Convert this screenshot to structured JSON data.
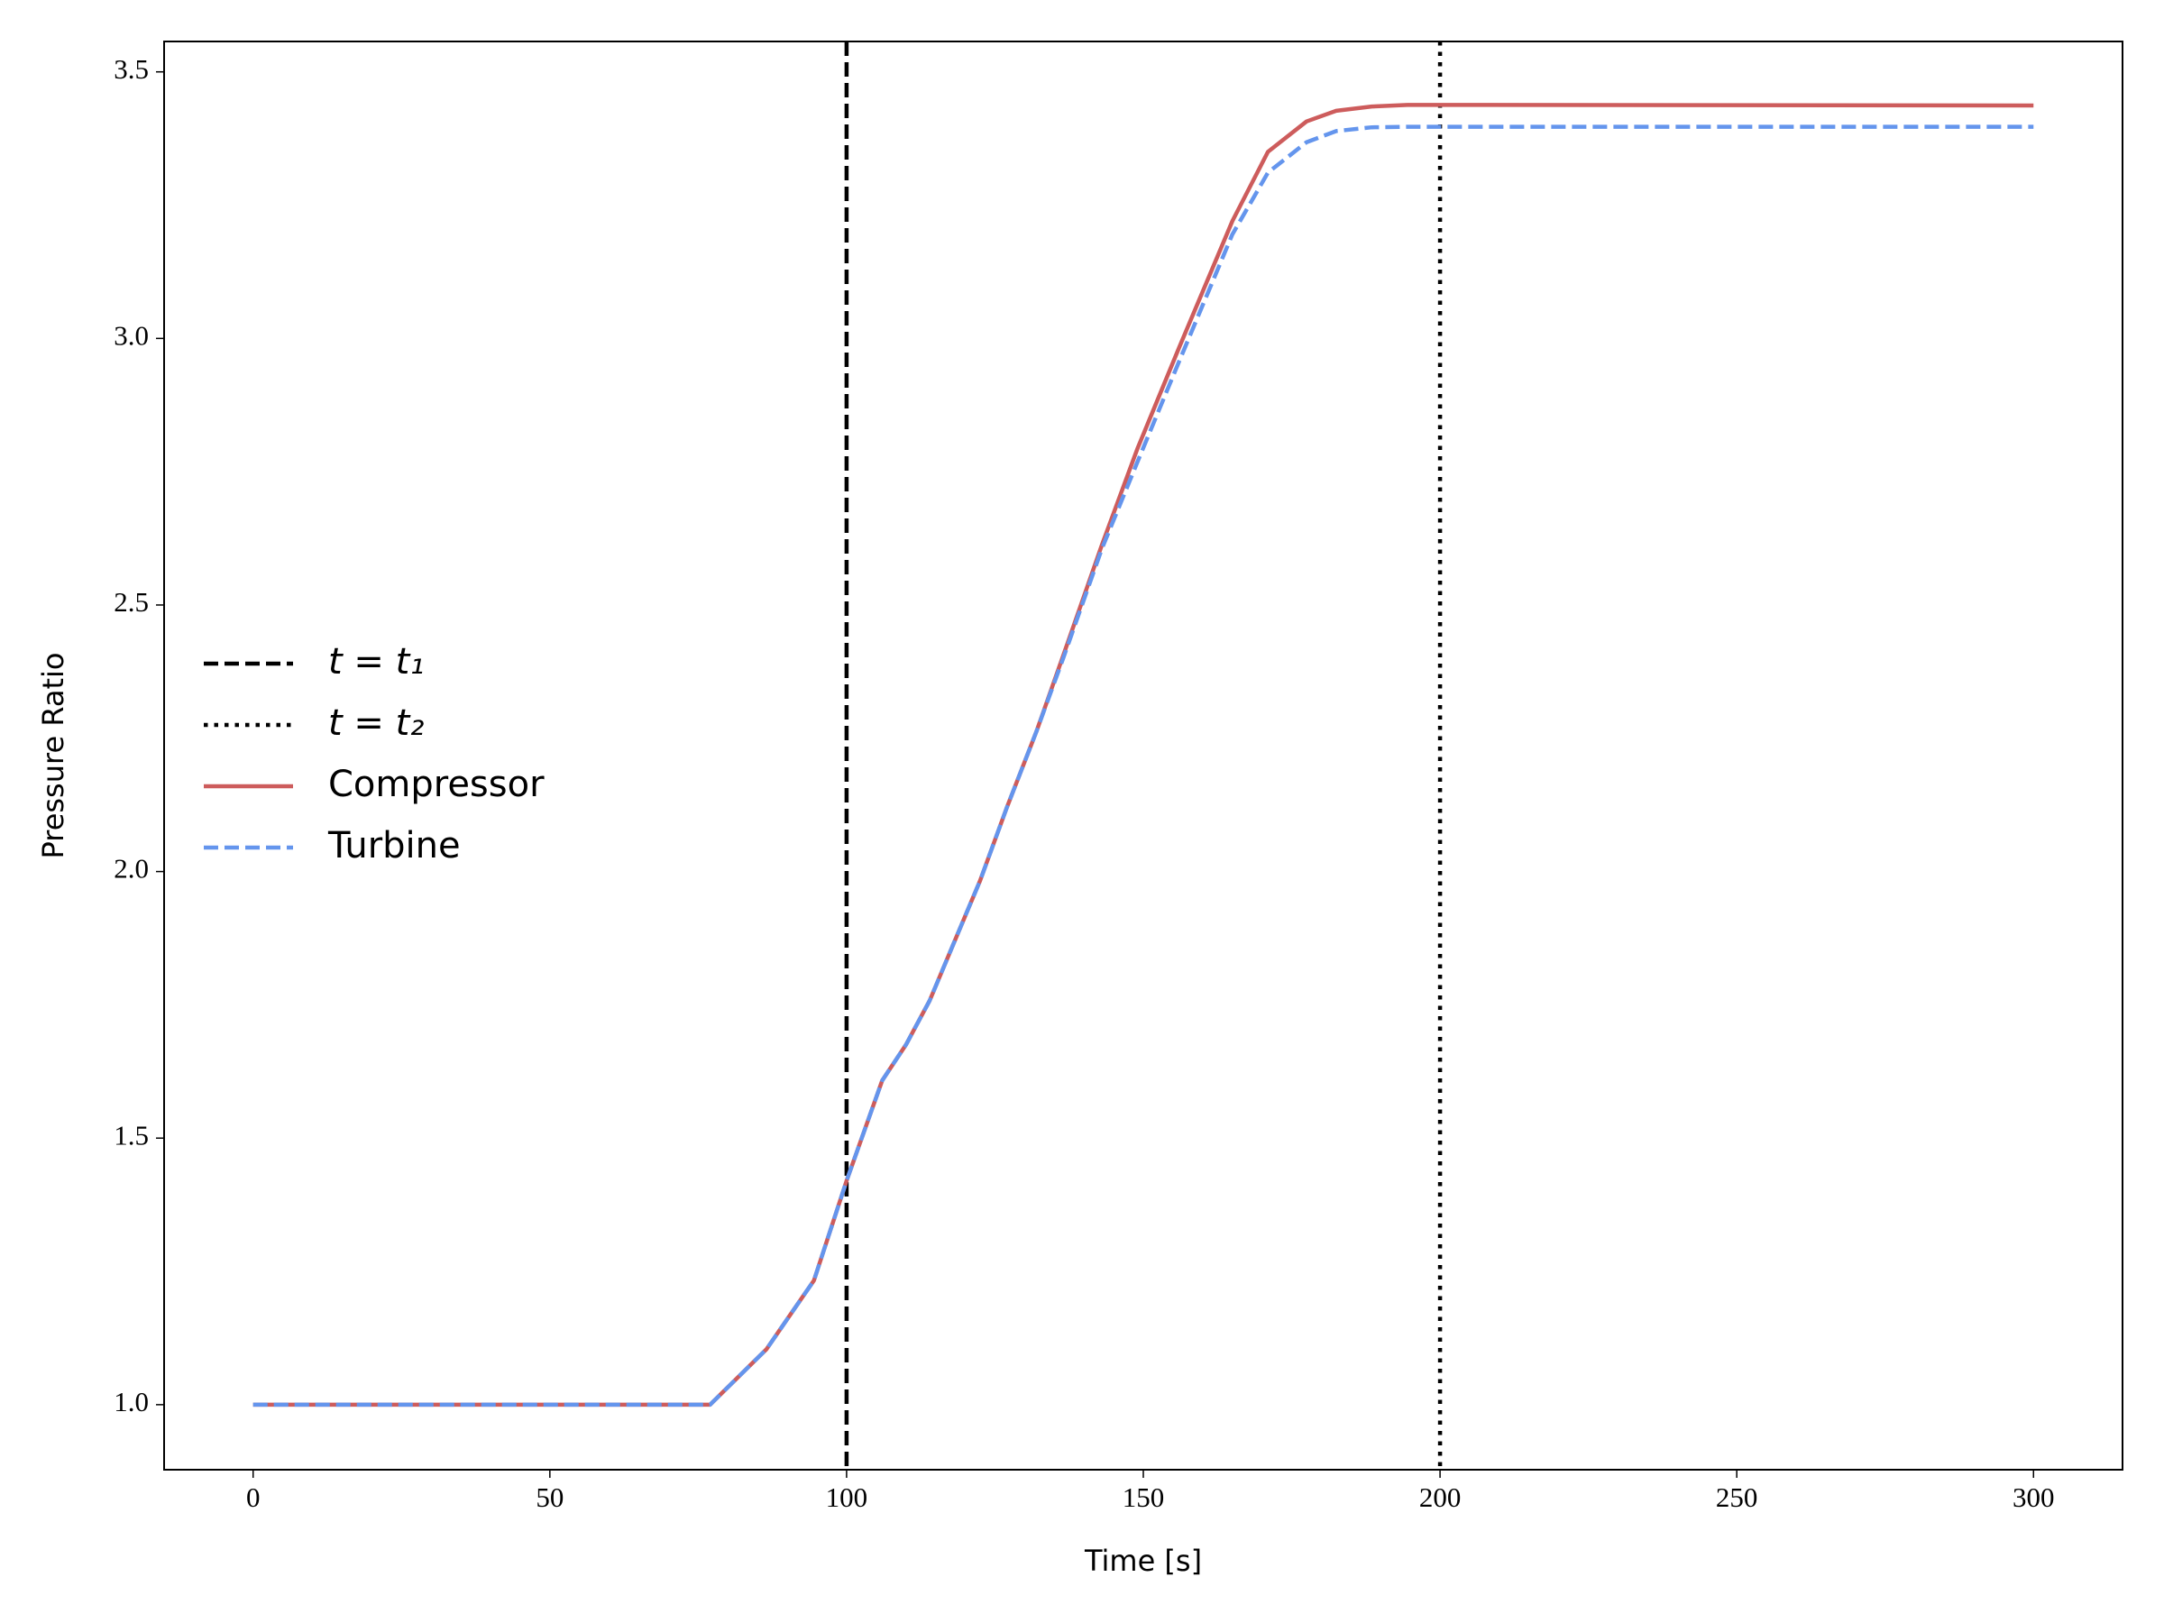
{
  "chart_data": {
    "type": "line",
    "xlabel": "Time [s]",
    "ylabel": "Pressure Ratio",
    "x": [
      0,
      77,
      86.5,
      94.5,
      100,
      106,
      110,
      114,
      118,
      122.5,
      127,
      132,
      136.5,
      143,
      149,
      156,
      165,
      171,
      177.5,
      182.5,
      188.5,
      194.5,
      200,
      300
    ],
    "series": [
      {
        "name": "Compressor",
        "color": "#cd5c5c",
        "style": "solid",
        "values": [
          1,
          1,
          1.104,
          1.233,
          1.42,
          1.608,
          1.675,
          1.758,
          1.864,
          1.983,
          2.12,
          2.263,
          2.405,
          2.612,
          2.793,
          2.982,
          3.22,
          3.35,
          3.407,
          3.427,
          3.435,
          3.438,
          3.438,
          3.437
        ]
      },
      {
        "name": "Turbine",
        "color": "#6495ed",
        "style": "dashed",
        "values": [
          1,
          1,
          1.104,
          1.233,
          1.42,
          1.608,
          1.675,
          1.758,
          1.864,
          1.983,
          2.12,
          2.263,
          2.4,
          2.605,
          2.768,
          2.956,
          3.195,
          3.311,
          3.368,
          3.389,
          3.396,
          3.397,
          3.397,
          3.397
        ]
      }
    ],
    "vlines": [
      {
        "name": "t = t₁",
        "x": 100,
        "color": "#000000",
        "style": "dashed"
      },
      {
        "name": "t = t₂",
        "x": 200,
        "color": "#000000",
        "style": "dotted"
      }
    ],
    "xlim": [
      -15,
      315
    ],
    "ylim": [
      0.878,
      3.557
    ],
    "xticks": [
      0,
      50,
      100,
      150,
      200,
      250,
      300
    ],
    "yticks": [
      {
        "value": 1,
        "label": "1.0"
      },
      1.5,
      {
        "value": 2,
        "label": "2.0"
      },
      2.5,
      {
        "value": 3,
        "label": "3.0"
      },
      3.5
    ],
    "grid": false,
    "legend": "center left"
  }
}
